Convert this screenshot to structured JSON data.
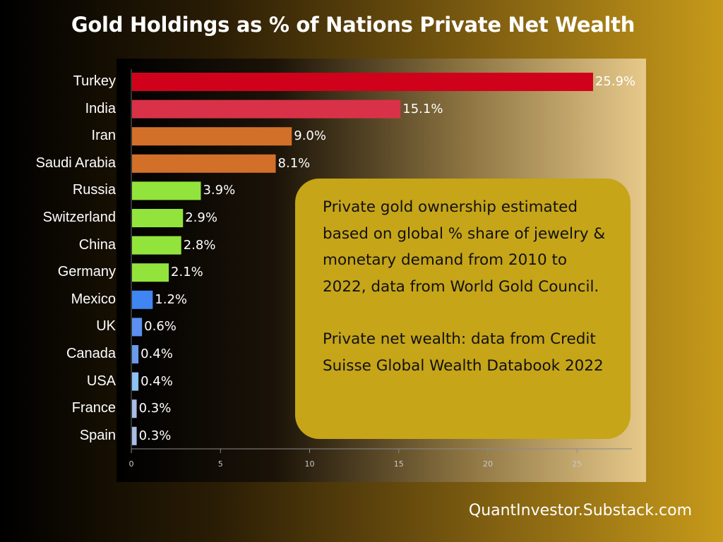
{
  "title": "Gold Holdings as % of Nations Private Net Wealth",
  "note": {
    "paragraph1": "Private gold ownership estimated based on global % share of jewelry & monetary demand from 2010 to 2022, data from World Gold Council.",
    "paragraph2": "Private net wealth: data from Credit Suisse Global Wealth Databook 2022"
  },
  "footer": "QuantInvestor.Substack.com",
  "chart_data": {
    "type": "bar",
    "orientation": "horizontal",
    "title": "Gold Holdings as % of Nations Private Net Wealth",
    "xlabel": "",
    "ylabel": "",
    "xlim": [
      0,
      28
    ],
    "xticks": [
      0,
      5,
      10,
      15,
      20,
      25
    ],
    "grid": false,
    "categories": [
      "Turkey",
      "India",
      "Iran",
      "Saudi Arabia",
      "Russia",
      "Switzerland",
      "China",
      "Germany",
      "Mexico",
      "UK",
      "Canada",
      "USA",
      "France",
      "Spain"
    ],
    "values": [
      25.9,
      15.1,
      9.0,
      8.1,
      3.9,
      2.9,
      2.8,
      2.1,
      1.2,
      0.6,
      0.4,
      0.4,
      0.3,
      0.3
    ],
    "data_labels": [
      "25.9%",
      "15.1%",
      "9.0%",
      "8.1%",
      "3.9%",
      "2.9%",
      "2.8%",
      "2.1%",
      "1.2%",
      "0.6%",
      "0.4%",
      "0.4%",
      "0.3%",
      "0.3%"
    ],
    "colors": [
      "#d0021b",
      "#d93248",
      "#d2702a",
      "#d2702a",
      "#92e43c",
      "#92e43c",
      "#92e43c",
      "#92e43c",
      "#3f86f3",
      "#5c8ff0",
      "#6a9ae8",
      "#8ec2f2",
      "#a9bde8",
      "#a9bde8"
    ]
  }
}
